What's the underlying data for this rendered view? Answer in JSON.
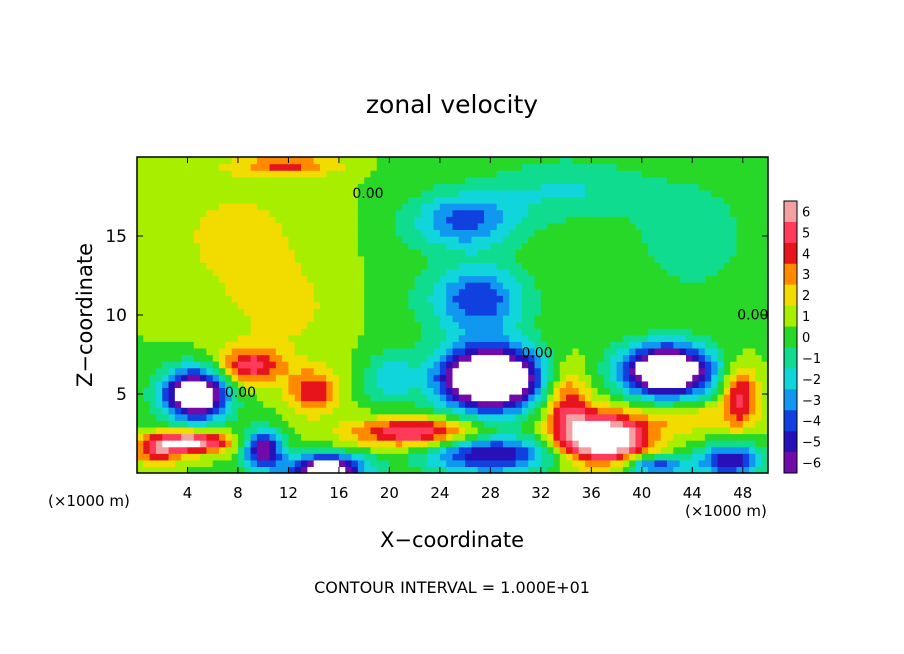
{
  "chart_data": {
    "type": "heatmap",
    "title": "zonal velocity",
    "xlabel": "X−coordinate",
    "ylabel": "Z−coordinate",
    "x_unit_label_left": "(×1000 m)",
    "x_unit_label_right": "(×1000 m)",
    "footer": "CONTOUR INTERVAL = 1.000E+01",
    "xlim": [
      0,
      50
    ],
    "ylim": [
      0,
      20
    ],
    "x_ticks": [
      4,
      8,
      12,
      16,
      20,
      24,
      28,
      32,
      36,
      40,
      44,
      48
    ],
    "x_tick_labels": [
      "4",
      "8",
      "12",
      "16",
      "20",
      "24",
      "28",
      "32",
      "36",
      "40",
      "44",
      "48"
    ],
    "y_ticks": [
      5,
      10,
      15
    ],
    "y_tick_labels": [
      "5",
      "10",
      "15"
    ],
    "contour_labels": [
      {
        "text": "0.00",
        "x": 18.3,
        "y": 17.4
      },
      {
        "text": "0.00",
        "x": 48.8,
        "y": 9.7
      },
      {
        "text": "0.00",
        "x": 31.7,
        "y": 7.3
      },
      {
        "text": "0.00",
        "x": 8.2,
        "y": 4.8
      }
    ],
    "colorbar": {
      "levels": [
        6,
        5,
        4,
        3,
        2,
        1,
        0,
        -1,
        -2,
        -3,
        -4,
        -5,
        -6
      ],
      "level_labels": [
        "6",
        "5",
        "4",
        "3",
        "2",
        "1",
        "0",
        "−1",
        "−2",
        "−3",
        "−4",
        "−5",
        "−6"
      ],
      "colors": [
        "#f3a0a0",
        "#ff3a5a",
        "#e8141c",
        "#ff8a00",
        "#f2dc00",
        "#a8ee00",
        "#28d828",
        "#10dc90",
        "#10d6dc",
        "#1098f0",
        "#1040e0",
        "#2810b8",
        "#700aa8"
      ]
    },
    "features": [
      {
        "x": 26,
        "y": 16,
        "v": -4.2,
        "rx": 4.2,
        "ry": 1.8
      },
      {
        "x": 27,
        "y": 11,
        "v": -4.8,
        "rx": 3.8,
        "ry": 2.2
      },
      {
        "x": 34,
        "y": 18,
        "v": -2.0,
        "rx": 6.0,
        "ry": 2.0
      },
      {
        "x": 44,
        "y": 15,
        "v": -1.5,
        "rx": 5.0,
        "ry": 4.0
      },
      {
        "x": 20,
        "y": 12,
        "v": -0.4,
        "rx": 3.0,
        "ry": 6.0
      },
      {
        "x": 8,
        "y": 15,
        "v": 1.3,
        "rx": 8.0,
        "ry": 5.0
      },
      {
        "x": 12,
        "y": 10,
        "v": 1.0,
        "rx": 5.0,
        "ry": 3.0
      },
      {
        "x": 12,
        "y": 19.5,
        "v": 3.0,
        "rx": 4.0,
        "ry": 0.6
      },
      {
        "x": 28,
        "y": 6,
        "v": -12.0,
        "rx": 4.0,
        "ry": 2.0
      },
      {
        "x": 42,
        "y": 6.5,
        "v": -11.0,
        "rx": 3.5,
        "ry": 1.6
      },
      {
        "x": 4.6,
        "y": 5,
        "v": -10.0,
        "rx": 2.5,
        "ry": 1.6
      },
      {
        "x": 9,
        "y": 6.8,
        "v": 4.5,
        "rx": 2.6,
        "ry": 1.2
      },
      {
        "x": 14,
        "y": 5.2,
        "v": 4.0,
        "rx": 2.0,
        "ry": 1.4
      },
      {
        "x": 4.5,
        "y": 2,
        "v": 6.5,
        "rx": 2.8,
        "ry": 0.7
      },
      {
        "x": 1.5,
        "y": 1.5,
        "v": 4.0,
        "rx": 2.0,
        "ry": 0.9
      },
      {
        "x": 10,
        "y": 1.5,
        "v": -7.0,
        "rx": 1.5,
        "ry": 1.2
      },
      {
        "x": 22,
        "y": 2.6,
        "v": 5.5,
        "rx": 5.0,
        "ry": 0.9
      },
      {
        "x": 15,
        "y": 0.3,
        "v": -9.0,
        "rx": 3.0,
        "ry": 0.9
      },
      {
        "x": 28,
        "y": 1.2,
        "v": -6.0,
        "rx": 5.0,
        "ry": 1.2
      },
      {
        "x": 37,
        "y": 2.2,
        "v": 8.5,
        "rx": 3.5,
        "ry": 1.6
      },
      {
        "x": 34,
        "y": 4.5,
        "v": 4.0,
        "rx": 1.8,
        "ry": 2.4
      },
      {
        "x": 47.8,
        "y": 5,
        "v": 4.5,
        "rx": 1.4,
        "ry": 1.8
      },
      {
        "x": 44,
        "y": 3.5,
        "v": 2.0,
        "rx": 4.0,
        "ry": 1.0
      },
      {
        "x": 47,
        "y": 0.8,
        "v": -6.0,
        "rx": 2.5,
        "ry": 1.0
      },
      {
        "x": 41,
        "y": 0.5,
        "v": -5.0,
        "rx": 2.5,
        "ry": 0.6
      },
      {
        "x": 20,
        "y": 6,
        "v": -2.5,
        "rx": 2.0,
        "ry": 1.5
      }
    ]
  }
}
